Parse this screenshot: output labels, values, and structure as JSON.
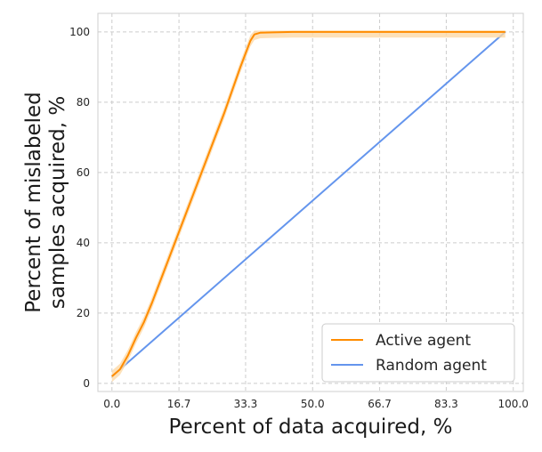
{
  "chart_data": {
    "type": "line",
    "xlabel": "Percent of data acquired, %",
    "ylabel_lines": [
      "Percent of mislabeled",
      "samples acquired, %"
    ],
    "xlim": [
      -3.5,
      102.5
    ],
    "ylim": [
      -2.3,
      105.3
    ],
    "x_ticks": [
      0.0,
      16.7,
      33.3,
      50.0,
      66.7,
      83.3,
      100.0
    ],
    "x_tick_labels": [
      "0.0",
      "16.7",
      "33.3",
      "50.0",
      "66.7",
      "83.3",
      "100.0"
    ],
    "y_ticks": [
      0,
      20,
      40,
      60,
      80,
      100
    ],
    "y_tick_labels": [
      "0",
      "20",
      "40",
      "60",
      "80",
      "100"
    ],
    "grid": true,
    "legend_position": "bottom-right",
    "series": [
      {
        "name": "Active agent",
        "color": "#ff8c00",
        "band_color": "#fdd9a8",
        "x": [
          0.0,
          2.0,
          4.0,
          6.0,
          8.0,
          10.0,
          12.0,
          14.0,
          16.0,
          18.0,
          20.0,
          22.0,
          24.0,
          26.0,
          28.0,
          30.0,
          32.0,
          33.5,
          34.5,
          35.5,
          37.0,
          40.0,
          45.0,
          50.0,
          60.0,
          70.0,
          80.0,
          90.0,
          98.0
        ],
        "y": [
          2.0,
          4.0,
          8.0,
          13.0,
          17.5,
          23.0,
          29.0,
          35.0,
          41.0,
          47.0,
          53.0,
          59.0,
          65.0,
          71.0,
          77.0,
          83.5,
          90.0,
          94.5,
          97.5,
          99.3,
          99.8,
          99.9,
          100.0,
          100.0,
          100.0,
          100.0,
          100.0,
          100.0,
          100.0
        ],
        "band": 1.6
      },
      {
        "name": "Random agent",
        "color": "#6495ed",
        "x": [
          0.0,
          98.0
        ],
        "y": [
          2.0,
          100.0
        ]
      }
    ]
  }
}
